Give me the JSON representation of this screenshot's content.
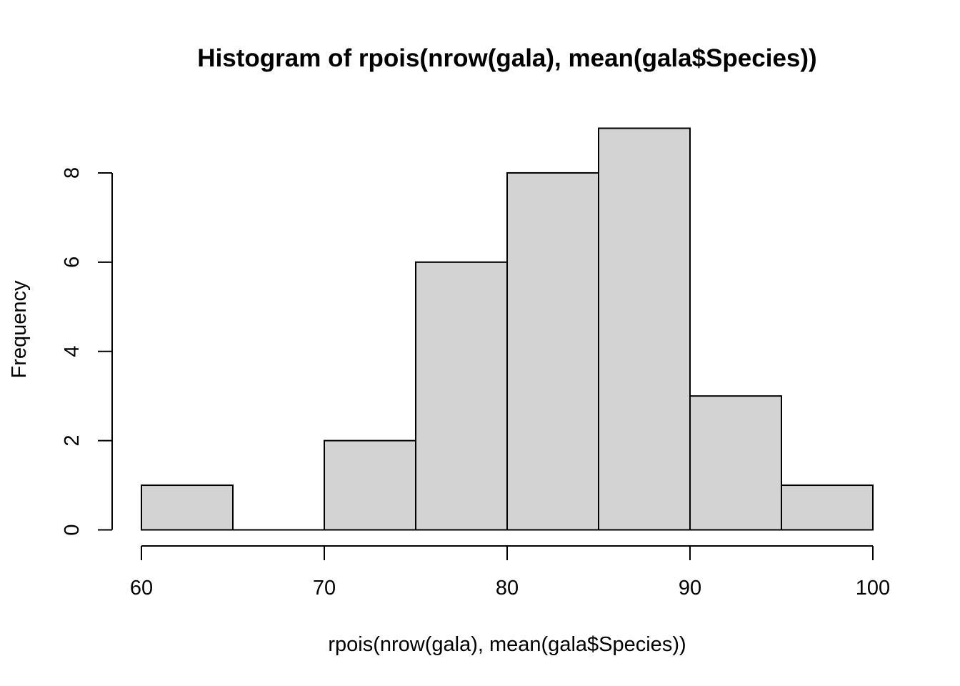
{
  "chart_data": {
    "type": "bar",
    "title": "Histogram of rpois(nrow(gala), mean(gala$Species))",
    "xlabel": "rpois(nrow(gala), mean(gala$Species))",
    "ylabel": "Frequency",
    "bins": [
      {
        "start": 60,
        "end": 65,
        "count": 1
      },
      {
        "start": 65,
        "end": 70,
        "count": 0
      },
      {
        "start": 70,
        "end": 75,
        "count": 2
      },
      {
        "start": 75,
        "end": 80,
        "count": 6
      },
      {
        "start": 80,
        "end": 85,
        "count": 8
      },
      {
        "start": 85,
        "end": 90,
        "count": 9
      },
      {
        "start": 90,
        "end": 95,
        "count": 3
      },
      {
        "start": 95,
        "end": 100,
        "count": 1
      }
    ],
    "xlim": [
      60,
      100
    ],
    "ylim": [
      0,
      9
    ],
    "x_ticks": [
      60,
      70,
      80,
      90,
      100
    ],
    "y_ticks": [
      0,
      2,
      4,
      6,
      8
    ],
    "x_tick_labels": [
      "60",
      "70",
      "80",
      "90",
      "100"
    ],
    "y_tick_labels": [
      "0",
      "2",
      "4",
      "6",
      "8"
    ],
    "grid": false,
    "bar_color": "#d3d3d3",
    "edge_color": "#000000"
  }
}
